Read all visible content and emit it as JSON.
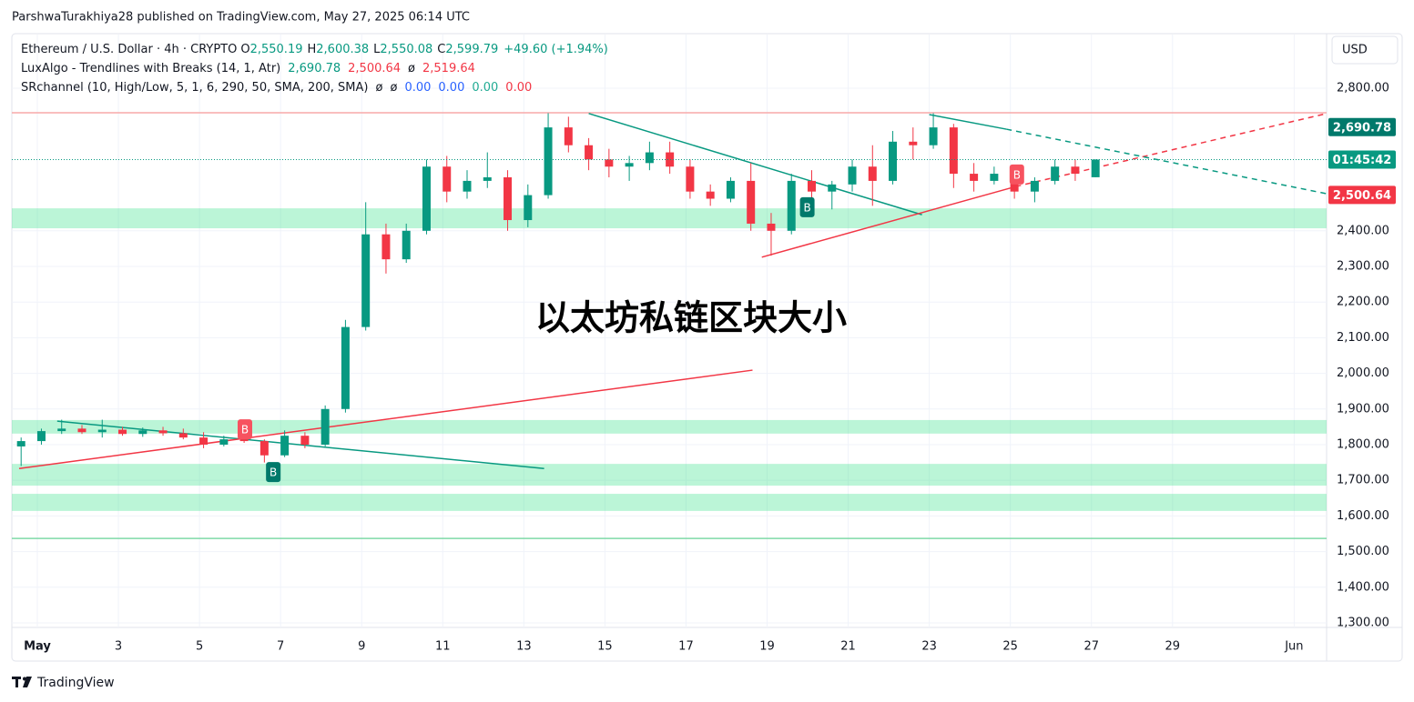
{
  "header": {
    "published": "ParshwaTurakhiya28 published on TradingView.com, May 27, 2025 06:14 UTC",
    "currency": "USD"
  },
  "legend": {
    "symbol": "Ethereum / U.S. Dollar · 4h · CRYPTO",
    "o_label": "O",
    "o": "2,550.19",
    "h_label": "H",
    "h": "2,600.38",
    "l_label": "L",
    "l": "2,550.08",
    "c_label": "C",
    "c": "2,599.79",
    "change": "+49.60 (+1.94%)",
    "lux": "LuxAlgo - Trendlines with Breaks (14, 1, Atr)",
    "lux_v1": "2,690.78",
    "lux_v2": "2,500.64",
    "lux_v3": "ø",
    "lux_v4": "2,519.64",
    "sr": "SRchannel (10, High/Low, 5, 1, 6, 290, 50, SMA, 200, SMA)",
    "sr_v1": "ø",
    "sr_v2": "ø",
    "sr_v3": "0.00",
    "sr_v4": "0.00",
    "sr_v5": "0.00",
    "sr_v6": "0.00"
  },
  "chart_data": {
    "type": "candlestick",
    "watermark": "以太坊私链区块大小",
    "up_color": "#089981",
    "down_color": "#f23645",
    "xlim": [
      0.371,
      32.8
    ],
    "ylim": [
      1287.2,
      2950.5
    ],
    "xticks": [
      {
        "value": 1,
        "label": "May"
      },
      3,
      5,
      7,
      9,
      11,
      13,
      15,
      17,
      19,
      21,
      23,
      25,
      27,
      29,
      {
        "value": 32,
        "label": "Jun"
      }
    ],
    "yticks": [
      {
        "value": 2800,
        "label": "2,800.00"
      },
      {
        "value": 2400,
        "label": "2,400.00"
      },
      {
        "value": 2300,
        "label": "2,300.00"
      },
      {
        "value": 2200,
        "label": "2,200.00"
      },
      {
        "value": 2100,
        "label": "2,100.00"
      },
      {
        "value": 2000,
        "label": "2,000.00"
      },
      {
        "value": 1900,
        "label": "1,900.00"
      },
      {
        "value": 1800,
        "label": "1,800.00"
      },
      {
        "value": 1700,
        "label": "1,700.00"
      },
      {
        "value": 1600,
        "label": "1,600.00"
      },
      {
        "value": 1500,
        "label": "1,500.00"
      },
      {
        "value": 1400,
        "label": "1,400.00"
      },
      {
        "value": 1300,
        "label": "1,300.00"
      }
    ],
    "grid": true,
    "candles": {
      "x": [
        0.6,
        1.1,
        1.6,
        2.1,
        2.6,
        3.1,
        3.6,
        4.1,
        4.6,
        5.1,
        5.6,
        6.1,
        6.6,
        7.1,
        7.6,
        8.1,
        8.6,
        9.1,
        9.6,
        10.1,
        10.6,
        11.1,
        11.6,
        12.1,
        12.6,
        13.1,
        13.6,
        14.1,
        14.6,
        15.1,
        15.6,
        16.1,
        16.6,
        17.1,
        17.6,
        18.1,
        18.6,
        19.1,
        19.6,
        20.1,
        20.6,
        21.1,
        21.6,
        22.1,
        22.6,
        23.1,
        23.6,
        24.1,
        24.6,
        25.1,
        25.6,
        26.1,
        26.6,
        27.1
      ],
      "open": [
        1795,
        1810,
        1838,
        1845,
        1835,
        1842,
        1830,
        1840,
        1832,
        1820,
        1800,
        1815,
        1810,
        1770,
        1825,
        1800,
        1900,
        2130,
        2390,
        2320,
        2400,
        2580,
        2510,
        2540,
        2550,
        2430,
        2500,
        2690,
        2640,
        2600,
        2580,
        2590,
        2620,
        2580,
        2510,
        2490,
        2540,
        2420,
        2400,
        2540,
        2510,
        2530,
        2580,
        2540,
        2650,
        2640,
        2690,
        2560,
        2540,
        2560,
        2510,
        2540,
        2580,
        2550.19
      ],
      "high": [
        1820,
        1845,
        1870,
        1855,
        1870,
        1850,
        1848,
        1850,
        1845,
        1835,
        1825,
        1840,
        1815,
        1840,
        1835,
        1910,
        2150,
        2480,
        2420,
        2420,
        2600,
        2610,
        2570,
        2620,
        2570,
        2530,
        2730,
        2720,
        2660,
        2630,
        2610,
        2650,
        2650,
        2600,
        2530,
        2550,
        2590,
        2450,
        2560,
        2570,
        2540,
        2600,
        2640,
        2680,
        2690,
        2730,
        2700,
        2590,
        2580,
        2580,
        2550,
        2600,
        2600,
        2600.38
      ],
      "low": [
        1740,
        1800,
        1830,
        1830,
        1820,
        1825,
        1822,
        1825,
        1815,
        1790,
        1795,
        1805,
        1750,
        1765,
        1790,
        1795,
        1890,
        2120,
        2280,
        2310,
        2390,
        2480,
        2490,
        2520,
        2400,
        2410,
        2490,
        2620,
        2570,
        2550,
        2540,
        2570,
        2560,
        2490,
        2470,
        2480,
        2400,
        2330,
        2390,
        2490,
        2460,
        2510,
        2470,
        2530,
        2600,
        2630,
        2520,
        2510,
        2530,
        2490,
        2480,
        2530,
        2540,
        2550.08
      ],
      "close": [
        1810,
        1838,
        1845,
        1835,
        1842,
        1830,
        1840,
        1832,
        1820,
        1800,
        1815,
        1810,
        1770,
        1825,
        1800,
        1900,
        2130,
        2390,
        2320,
        2400,
        2580,
        2510,
        2540,
        2550,
        2430,
        2500,
        2690,
        2640,
        2600,
        2580,
        2590,
        2620,
        2580,
        2510,
        2490,
        2540,
        2420,
        2400,
        2540,
        2510,
        2530,
        2580,
        2540,
        2650,
        2640,
        2690,
        2560,
        2540,
        2560,
        2510,
        2540,
        2580,
        2560,
        2599.79
      ]
    },
    "zones": [
      {
        "low": 2407,
        "high": 2463
      },
      {
        "low": 1831,
        "high": 1869
      },
      {
        "low": 1685,
        "high": 1746
      },
      {
        "low": 1614,
        "high": 1662
      }
    ],
    "levels": [
      {
        "value": 2731,
        "color": "#f7a9a9"
      },
      {
        "value": 1537,
        "color": "#7fd9a8"
      }
    ],
    "trendlines": [
      {
        "color": "#089981",
        "style": "solid",
        "x": [
          1.49,
          13.5
        ],
        "y": [
          1866,
          1733
        ]
      },
      {
        "color": "#f23645",
        "style": "solid",
        "x": [
          0.55,
          18.64
        ],
        "y": [
          1733,
          2009
        ]
      },
      {
        "color": "#089981",
        "style": "solid",
        "x": [
          14.6,
          22.82
        ],
        "y": [
          2729,
          2445
        ]
      },
      {
        "color": "#f23645",
        "style": "solid",
        "x": [
          18.87,
          25.13
        ],
        "y": [
          2326,
          2524
        ]
      },
      {
        "color": "#f23645",
        "style": "dashed",
        "x": [
          25.13,
          32.8
        ],
        "y": [
          2524,
          2729
        ]
      },
      {
        "color": "#089981",
        "style": "solid",
        "x": [
          23,
          24.9
        ],
        "y": [
          2726,
          2685
        ]
      },
      {
        "color": "#089981",
        "style": "dashed",
        "x": [
          24.9,
          32.8
        ],
        "y": [
          2685,
          2504
        ]
      }
    ],
    "markers": [
      {
        "text": "B",
        "x": 6.12,
        "y": 1843,
        "color": "#f7525f"
      },
      {
        "text": "B",
        "x": 6.82,
        "y": 1723,
        "color": "#00796b"
      },
      {
        "text": "B",
        "x": 19.99,
        "y": 2466,
        "color": "#00796b"
      },
      {
        "text": "B",
        "x": 25.16,
        "y": 2558,
        "color": "#f7525f"
      }
    ],
    "price_labels": [
      {
        "value": 2690.78,
        "label": "2,690.78",
        "color": "#00796b"
      },
      {
        "value": 2500.64,
        "label": "2,500.64",
        "color": "#f23645"
      }
    ],
    "countdown": "01:45:42",
    "countdown_color": "#089981"
  },
  "footer": {
    "brand": "TradingView"
  }
}
